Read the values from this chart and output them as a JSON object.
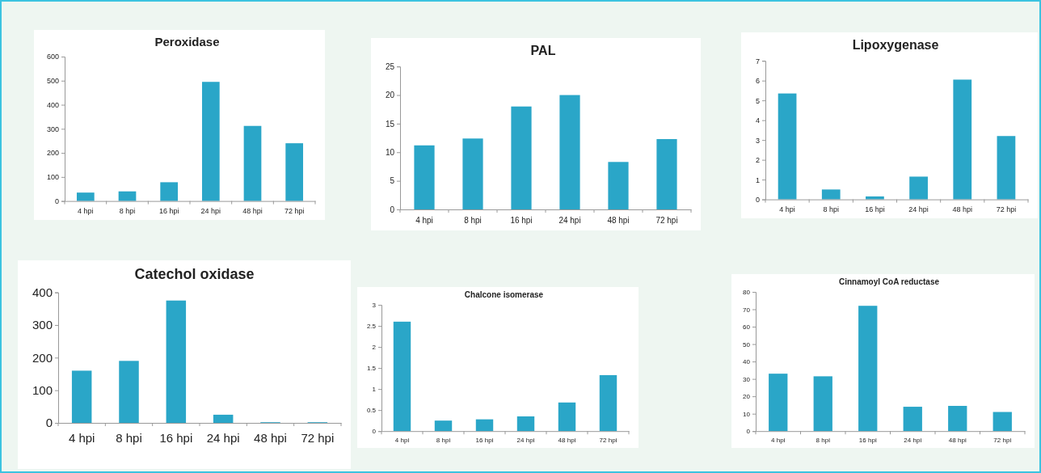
{
  "chart_data": [
    {
      "type": "bar",
      "title": "Peroxidase",
      "categories": [
        "4 hpi",
        "8 hpi",
        "16 hpi",
        "24 hpi",
        "48 hpi",
        "72 hpi"
      ],
      "values": [
        35,
        40,
        78,
        495,
        312,
        240
      ],
      "color": "#2aa6c8",
      "ylim": [
        0,
        600
      ],
      "yticks": [
        0,
        100,
        200,
        300,
        400,
        500,
        600
      ]
    },
    {
      "type": "bar",
      "title": "PAL",
      "categories": [
        "4 hpi",
        "8 hpi",
        "16 hpi",
        "24 hpi",
        "48 hpi",
        "72 hpi"
      ],
      "values": [
        11.2,
        12.4,
        18,
        20,
        8.3,
        12.3
      ],
      "color": "#2aa6c8",
      "ylim": [
        0,
        25
      ],
      "yticks": [
        0,
        5,
        10,
        15,
        20,
        25
      ]
    },
    {
      "type": "bar",
      "title": "Lipoxygenase",
      "categories": [
        "4 hpi",
        "8 hpi",
        "16 hpi",
        "24 hpi",
        "48 hpi",
        "72 hpi"
      ],
      "values": [
        5.35,
        0.5,
        0.15,
        1.15,
        6.05,
        3.2
      ],
      "color": "#2aa6c8",
      "ylim": [
        0,
        7
      ],
      "yticks": [
        0,
        1,
        2,
        3,
        4,
        5,
        6,
        7
      ]
    },
    {
      "type": "bar",
      "title": "Catechol oxidase",
      "categories": [
        "4 hpi",
        "8 hpi",
        "16 hpi",
        "24 hpi",
        "48 hpi",
        "72 hpi"
      ],
      "values": [
        160,
        190,
        375,
        25,
        2,
        2
      ],
      "color": "#2aa6c8",
      "ylim": [
        0,
        400
      ],
      "yticks": [
        0,
        100,
        200,
        300,
        400
      ]
    },
    {
      "type": "bar",
      "title": "Chalcone isomerase",
      "categories": [
        "4 hpi",
        "8 hpi",
        "16 hpi",
        "24 hpi",
        "48 hpi",
        "72 hpi"
      ],
      "values": [
        2.6,
        0.25,
        0.28,
        0.35,
        0.68,
        1.33
      ],
      "color": "#2aa6c8",
      "ylim": [
        0,
        3
      ],
      "yticks": [
        0,
        0.5,
        1,
        1.5,
        2,
        2.5,
        3
      ]
    },
    {
      "type": "bar",
      "title": "Cinnamoyl CoA reductase",
      "categories": [
        "4 hpi",
        "8 hpi",
        "16 hpi",
        "24 hpi",
        "48 hpi",
        "72 hpi"
      ],
      "values": [
        33,
        31.5,
        72,
        14,
        14.5,
        11
      ],
      "color": "#2aa6c8",
      "ylim": [
        0,
        80
      ],
      "yticks": [
        0,
        10,
        20,
        30,
        40,
        50,
        60,
        70,
        80
      ]
    }
  ]
}
